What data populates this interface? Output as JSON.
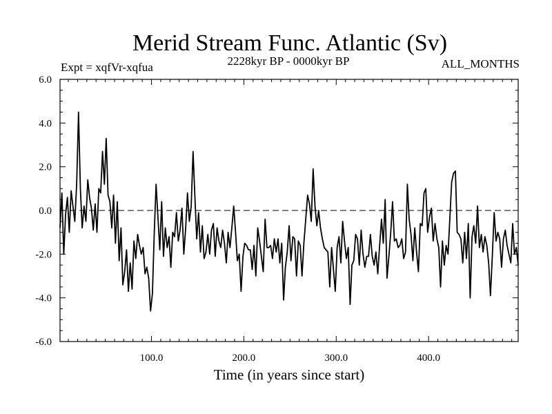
{
  "chart_data": {
    "type": "line",
    "title": "Merid Stream Func. Atlantic (Sv)",
    "expt_label": "Expt = xqfVr-xqfua",
    "period_label": "2228kyr BP - 0000kyr BP",
    "season_label": "ALL_MONTHS",
    "xlabel": "Time (in years since start)",
    "ylabel": "",
    "xlim": [
      1,
      497
    ],
    "ylim": [
      -6.0,
      6.0
    ],
    "x_ticks": [
      100,
      200,
      300,
      400
    ],
    "x_tick_labels": [
      "100.0",
      "200.0",
      "300.0",
      "400.0"
    ],
    "y_ticks": [
      -6,
      -4,
      -2,
      0,
      2,
      4,
      6
    ],
    "y_tick_labels": [
      "-6.0",
      "-4.0",
      "-2.0",
      "0.0",
      "2.0",
      "4.0",
      "6.0"
    ],
    "zero_line": {
      "value": 0.0,
      "style": "dashed"
    },
    "series": [
      {
        "name": "Merid Stream Func. Atlantic",
        "x_start": 1,
        "x_step": 2,
        "values": [
          -0.8,
          0.8,
          -2.0,
          -0.2,
          0.6,
          -1.0,
          0.9,
          0.2,
          -0.5,
          1.2,
          4.5,
          1.0,
          -0.8,
          0.2,
          -0.5,
          1.4,
          0.6,
          0.1,
          -0.9,
          0.3,
          -1.0,
          1.0,
          0.8,
          2.7,
          1.2,
          3.3,
          0.7,
          0.4,
          -0.8,
          0.7,
          -1.5,
          0.4,
          -2.3,
          -0.8,
          -3.4,
          -2.8,
          -1.8,
          -3.7,
          -2.4,
          -3.6,
          -1.4,
          -2.2,
          -1.1,
          -1.6,
          -2.0,
          -1.7,
          -2.9,
          -2.6,
          -3.1,
          -4.6,
          -3.8,
          -1.1,
          1.2,
          -0.3,
          -1.8,
          0.4,
          -2.1,
          -0.8,
          -1.7,
          -1.2,
          -2.6,
          -1.0,
          -1.2,
          -0.1,
          -1.4,
          -0.9,
          0.1,
          -2.0,
          -0.8,
          0.8,
          -0.5,
          0.2,
          2.7,
          0.6,
          -1.3,
          -0.1,
          -1.9,
          -0.7,
          -2.2,
          -1.9,
          -1.1,
          -2.0,
          -0.9,
          -0.6,
          -2.1,
          -0.8,
          -1.4,
          -1.7,
          -0.9,
          -1.5,
          -2.4,
          -1.0,
          -1.7,
          -0.8,
          0.2,
          -1.0,
          -2.3,
          -2.0,
          -3.7,
          -2.1,
          -1.5,
          -1.6,
          -1.8,
          -1.8,
          -2.7,
          -1.6,
          -3.0,
          -0.8,
          -1.4,
          -2.1,
          -2.8,
          -0.4,
          -1.7,
          -1.7,
          -1.6,
          -2.2,
          -1.3,
          -1.9,
          -1.3,
          -2.4,
          -1.5,
          -4.1,
          -2.6,
          -1.9,
          -0.7,
          -2.3,
          -1.2,
          -1.3,
          -3.0,
          -1.4,
          -1.6,
          -3.0,
          -1.5,
          -0.4,
          0.7,
          0.3,
          -0.5,
          1.9,
          0.2,
          -0.7,
          0.0,
          -0.8,
          -1.3,
          -1.7,
          -1.8,
          -1.9,
          -3.5,
          -1.7,
          -2.7,
          -3.7,
          -1.7,
          -1.2,
          -2.4,
          -0.5,
          -1.4,
          -2.2,
          -1.7,
          -4.3,
          -2.5,
          -2.3,
          -1.1,
          -1.3,
          -2.5,
          -0.9,
          -2.0,
          -2.6,
          -2.1,
          -2.1,
          -1.1,
          -2.1,
          -2.5,
          -1.9,
          -2.9,
          -1.6,
          -0.4,
          -1.5,
          0.5,
          -3.1,
          -2.1,
          -1.0,
          0.4,
          -1.4,
          -1.3,
          -1.7,
          -1.6,
          -1.3,
          -2.2,
          -1.9,
          1.2,
          -0.4,
          -1.1,
          -2.3,
          -0.8,
          -1.9,
          -2.8,
          -0.6,
          -0.7,
          0.8,
          1.0,
          -1.0,
          -0.3,
          0.1,
          -1.4,
          -0.6,
          -1.3,
          -1.7,
          -3.5,
          -1.4,
          -2.5,
          -1.6,
          -2.0,
          -0.4,
          1.3,
          1.7,
          1.8,
          -1.0,
          -1.1,
          -1.3,
          -2.4,
          -1.0,
          -2.2,
          -0.6,
          -4.0,
          -1.2,
          -0.7,
          -1.5,
          0.2,
          -1.7,
          -1.1,
          -1.9,
          -1.2,
          -1.6,
          -2.4,
          -3.9,
          -2.1,
          -0.1,
          -1.4,
          -1.0,
          -1.3,
          -2.6,
          -1.3,
          -0.9,
          -1.6,
          -2.0,
          -2.4,
          -0.6,
          -2.0,
          -1.7,
          -2.5
        ]
      }
    ]
  }
}
